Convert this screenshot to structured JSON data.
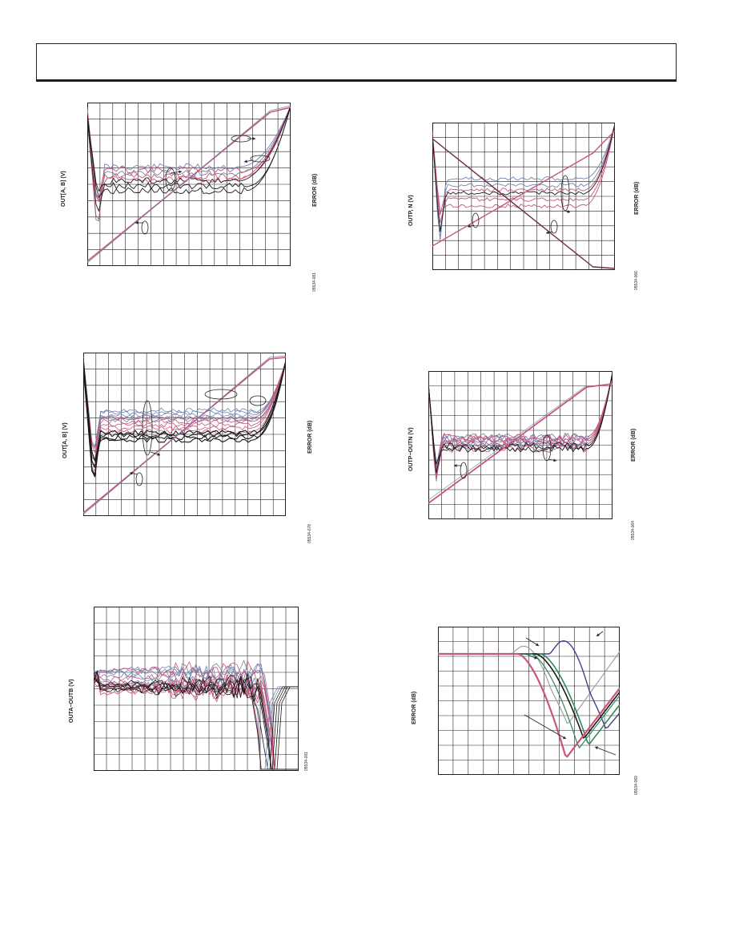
{
  "chart_data": [
    {
      "type": "line",
      "ylabel": "OUT[A, B] (V)",
      "y2label": "ERROR (dB)",
      "figure_id": "05534-081",
      "colors": {
        "blue": "#6f84b0",
        "pink": "#c8557a",
        "black": "#1a1a1a"
      }
    },
    {
      "type": "line",
      "ylabel": "OUTP, N (V)",
      "y2label": "ERROR (dB)",
      "figure_id": "05534-066",
      "colors": {
        "blue": "#6f84b0",
        "pink": "#c8557a",
        "black": "#1a1a1a"
      }
    },
    {
      "type": "line",
      "ylabel": "OUT[A, B] (V)",
      "y2label": "ERROR (dB)",
      "figure_id": "05534-078",
      "colors": {
        "blue": "#6f84b0",
        "pink": "#c8557a",
        "black": "#1a1a1a"
      }
    },
    {
      "type": "line",
      "ylabel": "OUTP−OUTN (V)",
      "y2label": "ERROR (dB)",
      "figure_id": "05534-064",
      "colors": {
        "blue": "#6f84b0",
        "pink": "#c8557a",
        "black": "#1a1a1a"
      }
    },
    {
      "type": "line",
      "ylabel": "OUTA−OUTB (V)",
      "figure_id": "05534-091",
      "colors": {
        "blue": "#6f84b0",
        "pink": "#c8557a",
        "black": "#1a1a1a"
      }
    },
    {
      "type": "line",
      "ylabel": "ERROR (dB)",
      "figure_id": "05534-069",
      "colors": {
        "pink": "#c8557a",
        "green": "#2e8b57",
        "black": "#1a1a1a",
        "purple": "#4b3a8c",
        "grey": "#a0a0a0"
      }
    }
  ]
}
